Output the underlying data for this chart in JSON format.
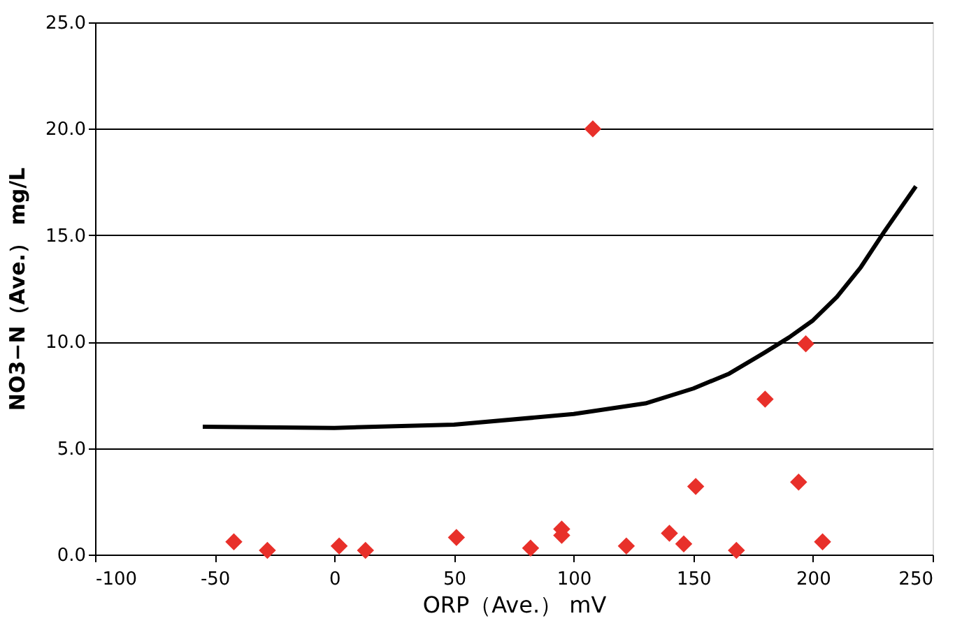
{
  "chart_data": {
    "type": "scatter",
    "xlabel": "ORP（Ave.） mV",
    "ylabel": "NO3−N（Ave.） mg/L",
    "xlim": [
      -100,
      250
    ],
    "xticks": [
      -100,
      -50,
      0,
      50,
      100,
      150,
      200,
      250
    ],
    "ylim": [
      0,
      25
    ],
    "yticks": [
      {
        "value": 0,
        "label": "0.0"
      },
      {
        "value": 5,
        "label": "5.0"
      },
      {
        "value": 10,
        "label": "10.0"
      },
      {
        "value": 15,
        "label": "15.0"
      },
      {
        "value": 20,
        "label": "20.0"
      },
      {
        "value": 25,
        "label": "25.0"
      }
    ],
    "grid": "y",
    "series": [
      {
        "marker": "diamond",
        "color": "#e8302a",
        "x": [
          -42,
          -28,
          2,
          13,
          51,
          82,
          95,
          95,
          108,
          122,
          140,
          146,
          151,
          168,
          180,
          194,
          197,
          204
        ],
        "values": [
          0.6,
          0.2,
          0.4,
          0.2,
          0.8,
          0.3,
          1.2,
          0.9,
          20.0,
          0.4,
          1.0,
          0.5,
          3.2,
          0.2,
          7.3,
          3.4,
          9.9,
          0.6
        ]
      },
      {
        "type": "line",
        "marker": "none",
        "line_style": "solid",
        "color": "#000000",
        "x": [
          -55,
          0,
          50,
          100,
          130,
          150,
          165,
          180,
          190,
          200,
          210,
          220,
          230,
          243
        ],
        "values": [
          6.0,
          5.95,
          6.1,
          6.6,
          7.1,
          7.8,
          8.5,
          9.5,
          10.2,
          11.0,
          12.1,
          13.5,
          15.2,
          17.3
        ]
      }
    ]
  }
}
